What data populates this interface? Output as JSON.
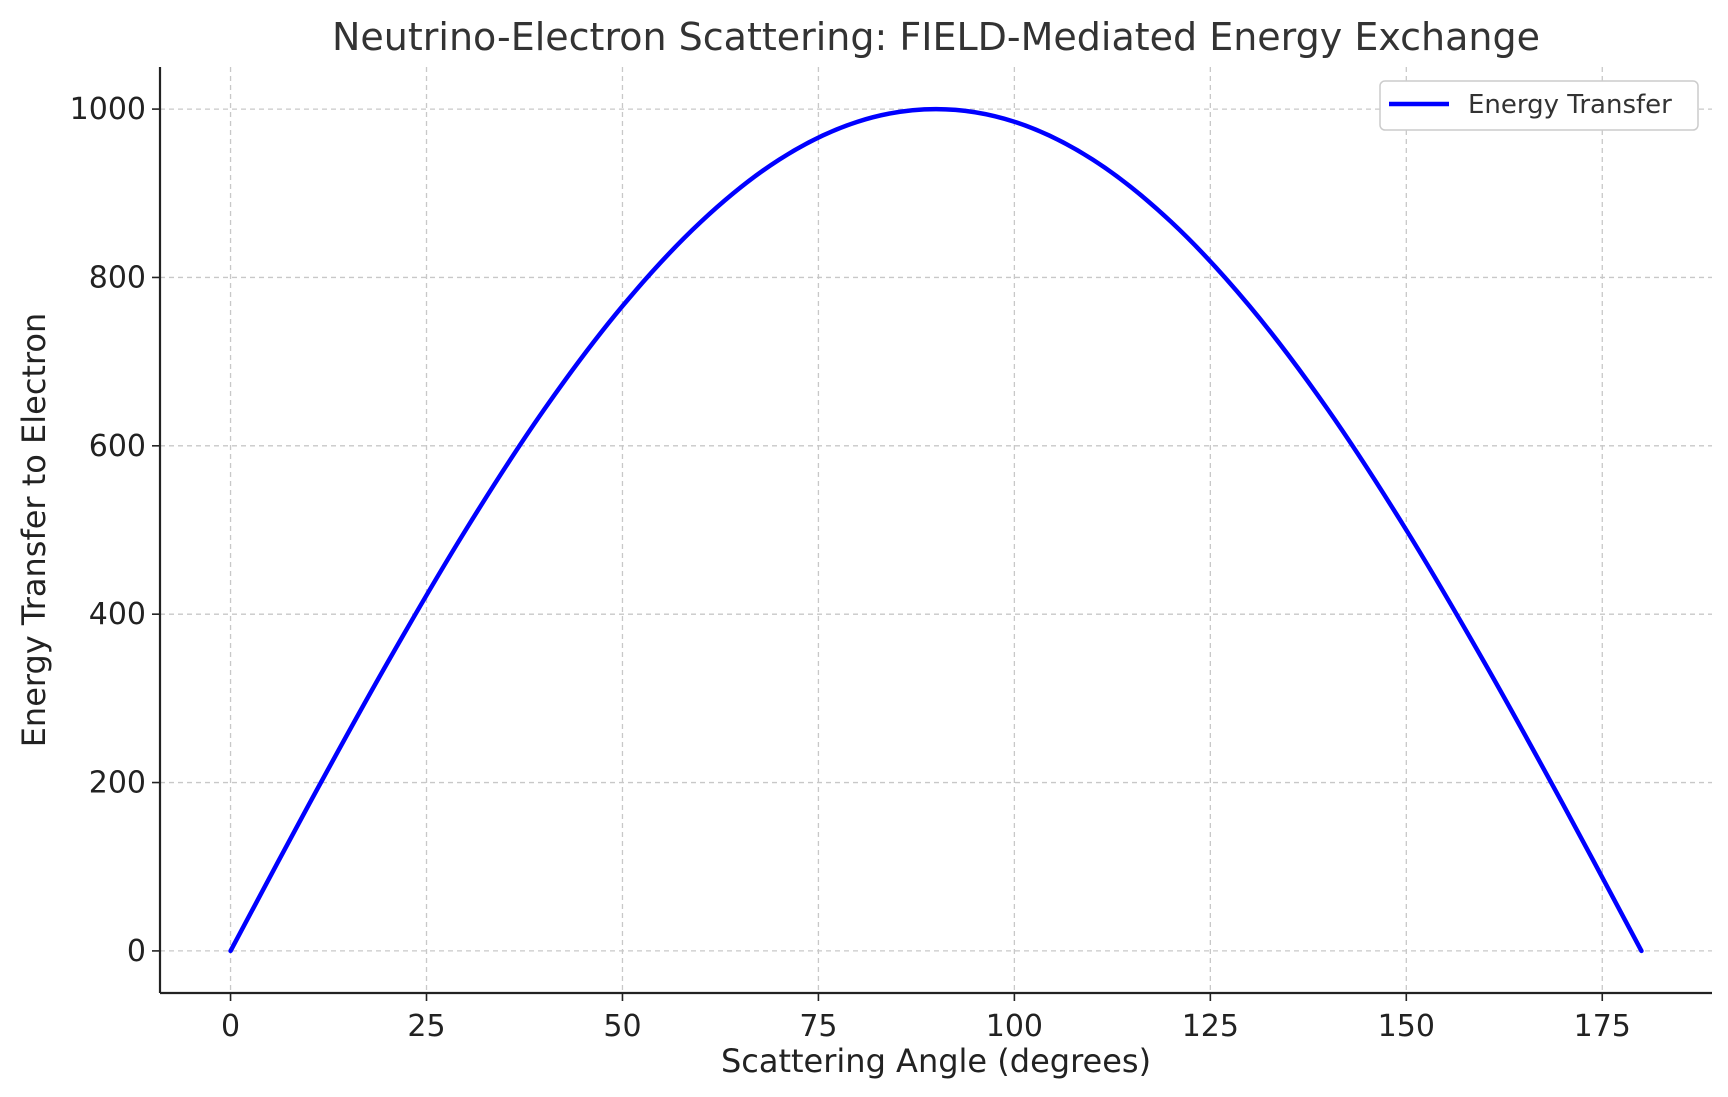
{
  "chart_data": {
    "type": "line",
    "title": "Neutrino-Electron Scattering: FIELD-Mediated Energy Exchange",
    "xlabel": "Scattering Angle (degrees)",
    "ylabel": "Energy Transfer to Electron",
    "xlim": [
      -9,
      189
    ],
    "ylim": [
      -50,
      1050
    ],
    "xticks": [
      0,
      25,
      50,
      75,
      100,
      125,
      150,
      175
    ],
    "yticks": [
      0,
      200,
      400,
      600,
      800,
      1000
    ],
    "xtick_labels": [
      "0",
      "25",
      "50",
      "75",
      "100",
      "125",
      "150",
      "175"
    ],
    "ytick_labels": [
      "0",
      "200",
      "400",
      "600",
      "800",
      "1000"
    ],
    "grid": true,
    "legend_position": "top-right",
    "series": [
      {
        "name": "Energy Transfer",
        "color": "#0000ff",
        "x": [
          0,
          10,
          20,
          30,
          40,
          50,
          60,
          70,
          80,
          90,
          100,
          110,
          120,
          130,
          140,
          150,
          160,
          170,
          180
        ],
        "y": [
          0,
          174,
          342,
          500,
          643,
          766,
          866,
          940,
          985,
          1000,
          985,
          940,
          866,
          766,
          643,
          500,
          342,
          174,
          0
        ]
      }
    ]
  }
}
